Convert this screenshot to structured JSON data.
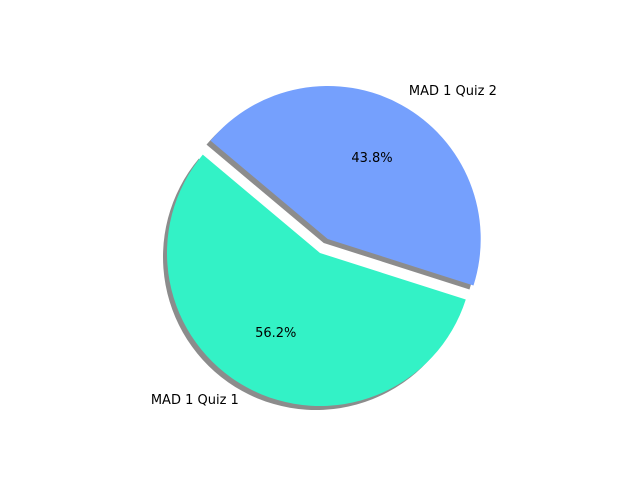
{
  "chart_data": {
    "type": "pie",
    "title": "",
    "slices": [
      {
        "label": "MAD 1 Quiz 1",
        "value": 56.2,
        "percent_label": "56.2%",
        "color": "#33f2c6",
        "exploded": false
      },
      {
        "label": "MAD 1 Quiz 2",
        "value": 43.8,
        "percent_label": "43.8%",
        "color": "#75a0fd",
        "exploded": true
      }
    ],
    "shadow": true,
    "legend": "none"
  }
}
